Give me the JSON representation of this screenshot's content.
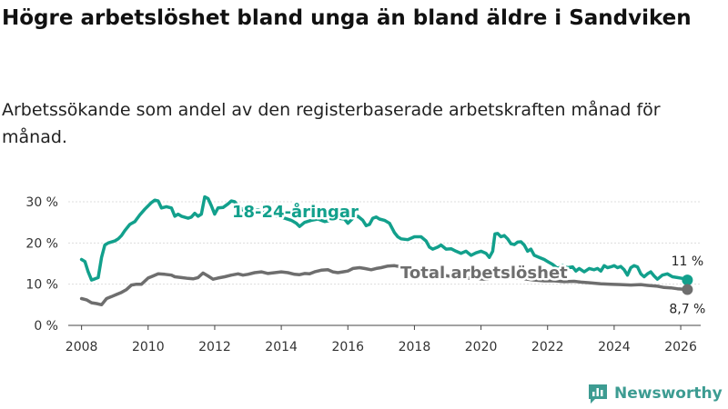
{
  "title": "Högre arbetslöshet bland unga än bland äldre i Sandviken",
  "subtitle": "Arbetssökande som andel av den registerbaserade arbetskraften månad för månad.",
  "brand": {
    "name": "Newsworthy",
    "icon": "bar-chart-logo-icon"
  },
  "colors": {
    "youth": "#12a08c",
    "total": "#6e6e6e",
    "grid": "#dddddd",
    "brand": "#3d9c92"
  },
  "chart_data": {
    "type": "line",
    "xlim": [
      2007.6,
      2026.6
    ],
    "ylim": [
      0,
      30
    ],
    "y_ticks": [
      0,
      10,
      20,
      30
    ],
    "y_tick_labels": [
      "0 %",
      "10 %",
      "20 %",
      "30 %"
    ],
    "x_ticks": [
      2008,
      2010,
      2012,
      2014,
      2016,
      2018,
      2020,
      2022,
      2024,
      2026
    ],
    "x_tick_labels": [
      "2008",
      "2010",
      "2012",
      "2014",
      "2016",
      "2018",
      "2020",
      "2022",
      "2024",
      "2026"
    ],
    "grid": true,
    "legend": "inline labels",
    "series": [
      {
        "name": "18-24-åringar",
        "end_label": "11 %",
        "points": [
          [
            2008.0,
            16.0
          ],
          [
            2008.1,
            15.5
          ],
          [
            2008.2,
            13.0
          ],
          [
            2008.3,
            11.0
          ],
          [
            2008.4,
            11.3
          ],
          [
            2008.5,
            11.6
          ],
          [
            2008.6,
            16.5
          ],
          [
            2008.7,
            19.5
          ],
          [
            2008.8,
            20.0
          ],
          [
            2009.0,
            20.5
          ],
          [
            2009.1,
            21.0
          ],
          [
            2009.2,
            21.8
          ],
          [
            2009.3,
            23.0
          ],
          [
            2009.45,
            24.5
          ],
          [
            2009.6,
            25.2
          ],
          [
            2009.75,
            26.8
          ],
          [
            2009.9,
            28.2
          ],
          [
            2010.0,
            29.0
          ],
          [
            2010.1,
            29.8
          ],
          [
            2010.2,
            30.4
          ],
          [
            2010.3,
            30.2
          ],
          [
            2010.4,
            28.5
          ],
          [
            2010.55,
            28.8
          ],
          [
            2010.7,
            28.5
          ],
          [
            2010.8,
            26.5
          ],
          [
            2010.9,
            27.0
          ],
          [
            2011.0,
            26.5
          ],
          [
            2011.2,
            26.0
          ],
          [
            2011.3,
            26.3
          ],
          [
            2011.4,
            27.2
          ],
          [
            2011.5,
            26.5
          ],
          [
            2011.6,
            27.0
          ],
          [
            2011.7,
            31.2
          ],
          [
            2011.8,
            30.8
          ],
          [
            2011.9,
            29.0
          ],
          [
            2012.0,
            27.0
          ],
          [
            2012.1,
            28.5
          ],
          [
            2012.25,
            28.6
          ],
          [
            2012.4,
            29.5
          ],
          [
            2012.5,
            30.2
          ],
          [
            2012.6,
            30.0
          ],
          [
            2012.7,
            29.0
          ],
          [
            2012.85,
            28.0
          ],
          [
            2013.0,
            27.5
          ],
          [
            2013.15,
            27.8
          ],
          [
            2013.3,
            28.0
          ],
          [
            2013.5,
            27.5
          ],
          [
            2013.7,
            27.0
          ],
          [
            2013.9,
            26.5
          ],
          [
            2014.1,
            26.0
          ],
          [
            2014.3,
            25.5
          ],
          [
            2014.45,
            24.8
          ],
          [
            2014.55,
            24.0
          ],
          [
            2014.7,
            25.0
          ],
          [
            2014.9,
            25.5
          ],
          [
            2015.1,
            25.8
          ],
          [
            2015.3,
            25.2
          ],
          [
            2015.5,
            25.5
          ],
          [
            2015.7,
            26.0
          ],
          [
            2015.9,
            25.8
          ],
          [
            2016.0,
            24.8
          ],
          [
            2016.15,
            26.0
          ],
          [
            2016.3,
            26.5
          ],
          [
            2016.45,
            25.5
          ],
          [
            2016.55,
            24.2
          ],
          [
            2016.65,
            24.5
          ],
          [
            2016.75,
            26.0
          ],
          [
            2016.85,
            26.3
          ],
          [
            2016.95,
            25.8
          ],
          [
            2017.1,
            25.5
          ],
          [
            2017.25,
            24.8
          ],
          [
            2017.4,
            22.5
          ],
          [
            2017.5,
            21.5
          ],
          [
            2017.6,
            21.0
          ],
          [
            2017.8,
            20.8
          ],
          [
            2018.0,
            21.5
          ],
          [
            2018.2,
            21.5
          ],
          [
            2018.35,
            20.5
          ],
          [
            2018.45,
            19.0
          ],
          [
            2018.55,
            18.5
          ],
          [
            2018.7,
            19.0
          ],
          [
            2018.8,
            19.5
          ],
          [
            2018.95,
            18.5
          ],
          [
            2019.1,
            18.6
          ],
          [
            2019.25,
            18.0
          ],
          [
            2019.4,
            17.5
          ],
          [
            2019.55,
            18.0
          ],
          [
            2019.7,
            17.0
          ],
          [
            2019.85,
            17.6
          ],
          [
            2020.0,
            18.0
          ],
          [
            2020.15,
            17.5
          ],
          [
            2020.25,
            16.5
          ],
          [
            2020.35,
            18.0
          ],
          [
            2020.42,
            22.2
          ],
          [
            2020.5,
            22.3
          ],
          [
            2020.6,
            21.5
          ],
          [
            2020.7,
            21.8
          ],
          [
            2020.8,
            21.0
          ],
          [
            2020.9,
            19.8
          ],
          [
            2021.0,
            19.6
          ],
          [
            2021.1,
            20.2
          ],
          [
            2021.2,
            20.3
          ],
          [
            2021.3,
            19.5
          ],
          [
            2021.4,
            18.0
          ],
          [
            2021.5,
            18.5
          ],
          [
            2021.6,
            17.0
          ],
          [
            2021.75,
            16.5
          ],
          [
            2021.9,
            16.0
          ],
          [
            2022.0,
            15.5
          ],
          [
            2022.15,
            14.8
          ],
          [
            2022.3,
            13.8
          ],
          [
            2022.45,
            14.5
          ],
          [
            2022.6,
            14.0
          ],
          [
            2022.75,
            14.2
          ],
          [
            2022.85,
            13.2
          ],
          [
            2022.95,
            13.8
          ],
          [
            2023.1,
            13.0
          ],
          [
            2023.25,
            13.8
          ],
          [
            2023.4,
            13.5
          ],
          [
            2023.5,
            13.8
          ],
          [
            2023.6,
            13.2
          ],
          [
            2023.7,
            14.5
          ],
          [
            2023.8,
            14.0
          ],
          [
            2023.9,
            14.2
          ],
          [
            2024.0,
            14.5
          ],
          [
            2024.1,
            14.0
          ],
          [
            2024.2,
            14.3
          ],
          [
            2024.3,
            13.5
          ],
          [
            2024.4,
            12.2
          ],
          [
            2024.5,
            14.0
          ],
          [
            2024.6,
            14.5
          ],
          [
            2024.7,
            14.2
          ],
          [
            2024.8,
            12.5
          ],
          [
            2024.9,
            11.8
          ],
          [
            2025.0,
            12.5
          ],
          [
            2025.1,
            13.0
          ],
          [
            2025.2,
            12.0
          ],
          [
            2025.3,
            11.2
          ],
          [
            2025.45,
            12.2
          ],
          [
            2025.6,
            12.5
          ],
          [
            2025.75,
            11.8
          ],
          [
            2025.9,
            11.6
          ],
          [
            2026.05,
            11.4
          ],
          [
            2026.2,
            11.0
          ]
        ]
      },
      {
        "name": "Total arbetslöshet",
        "end_label": "8,7 %",
        "points": [
          [
            2008.0,
            6.5
          ],
          [
            2008.15,
            6.2
          ],
          [
            2008.3,
            5.5
          ],
          [
            2008.45,
            5.3
          ],
          [
            2008.6,
            5.0
          ],
          [
            2008.75,
            6.5
          ],
          [
            2008.9,
            7.0
          ],
          [
            2009.05,
            7.5
          ],
          [
            2009.2,
            8.0
          ],
          [
            2009.35,
            8.7
          ],
          [
            2009.5,
            9.8
          ],
          [
            2009.65,
            10.0
          ],
          [
            2009.8,
            10.0
          ],
          [
            2010.0,
            11.5
          ],
          [
            2010.15,
            12.0
          ],
          [
            2010.3,
            12.5
          ],
          [
            2010.5,
            12.4
          ],
          [
            2010.7,
            12.2
          ],
          [
            2010.8,
            11.8
          ],
          [
            2011.0,
            11.6
          ],
          [
            2011.2,
            11.4
          ],
          [
            2011.35,
            11.3
          ],
          [
            2011.5,
            11.6
          ],
          [
            2011.65,
            12.7
          ],
          [
            2011.8,
            12.0
          ],
          [
            2011.95,
            11.2
          ],
          [
            2012.1,
            11.5
          ],
          [
            2012.3,
            11.8
          ],
          [
            2012.5,
            12.2
          ],
          [
            2012.7,
            12.5
          ],
          [
            2012.85,
            12.2
          ],
          [
            2013.0,
            12.4
          ],
          [
            2013.2,
            12.8
          ],
          [
            2013.4,
            13.0
          ],
          [
            2013.6,
            12.6
          ],
          [
            2013.8,
            12.8
          ],
          [
            2014.0,
            13.0
          ],
          [
            2014.2,
            12.8
          ],
          [
            2014.4,
            12.4
          ],
          [
            2014.55,
            12.3
          ],
          [
            2014.7,
            12.6
          ],
          [
            2014.85,
            12.5
          ],
          [
            2015.0,
            13.0
          ],
          [
            2015.2,
            13.4
          ],
          [
            2015.4,
            13.5
          ],
          [
            2015.55,
            13.0
          ],
          [
            2015.7,
            12.8
          ],
          [
            2015.85,
            13.0
          ],
          [
            2016.0,
            13.2
          ],
          [
            2016.15,
            13.8
          ],
          [
            2016.35,
            14.0
          ],
          [
            2016.5,
            13.8
          ],
          [
            2016.7,
            13.5
          ],
          [
            2016.85,
            13.8
          ],
          [
            2017.0,
            14.0
          ],
          [
            2017.2,
            14.4
          ],
          [
            2017.4,
            14.5
          ],
          [
            2017.6,
            14.2
          ],
          [
            2017.8,
            13.6
          ],
          [
            2018.0,
            13.2
          ],
          [
            2018.2,
            12.8
          ],
          [
            2018.4,
            12.5
          ],
          [
            2018.6,
            12.2
          ],
          [
            2018.8,
            12.3
          ],
          [
            2019.0,
            12.0
          ],
          [
            2019.3,
            11.8
          ],
          [
            2019.6,
            11.5
          ],
          [
            2019.9,
            11.3
          ],
          [
            2020.2,
            11.2
          ],
          [
            2020.4,
            11.8
          ],
          [
            2020.6,
            12.0
          ],
          [
            2020.8,
            11.8
          ],
          [
            2021.0,
            11.6
          ],
          [
            2021.3,
            11.3
          ],
          [
            2021.6,
            11.0
          ],
          [
            2021.9,
            10.8
          ],
          [
            2022.2,
            10.8
          ],
          [
            2022.5,
            10.6
          ],
          [
            2022.8,
            10.7
          ],
          [
            2023.0,
            10.5
          ],
          [
            2023.3,
            10.3
          ],
          [
            2023.6,
            10.1
          ],
          [
            2023.9,
            10.0
          ],
          [
            2024.2,
            9.9
          ],
          [
            2024.5,
            9.8
          ],
          [
            2024.8,
            9.9
          ],
          [
            2025.0,
            9.7
          ],
          [
            2025.3,
            9.5
          ],
          [
            2025.5,
            9.2
          ],
          [
            2025.7,
            9.1
          ],
          [
            2025.9,
            8.9
          ],
          [
            2026.05,
            8.8
          ],
          [
            2026.2,
            8.7
          ]
        ]
      }
    ]
  }
}
